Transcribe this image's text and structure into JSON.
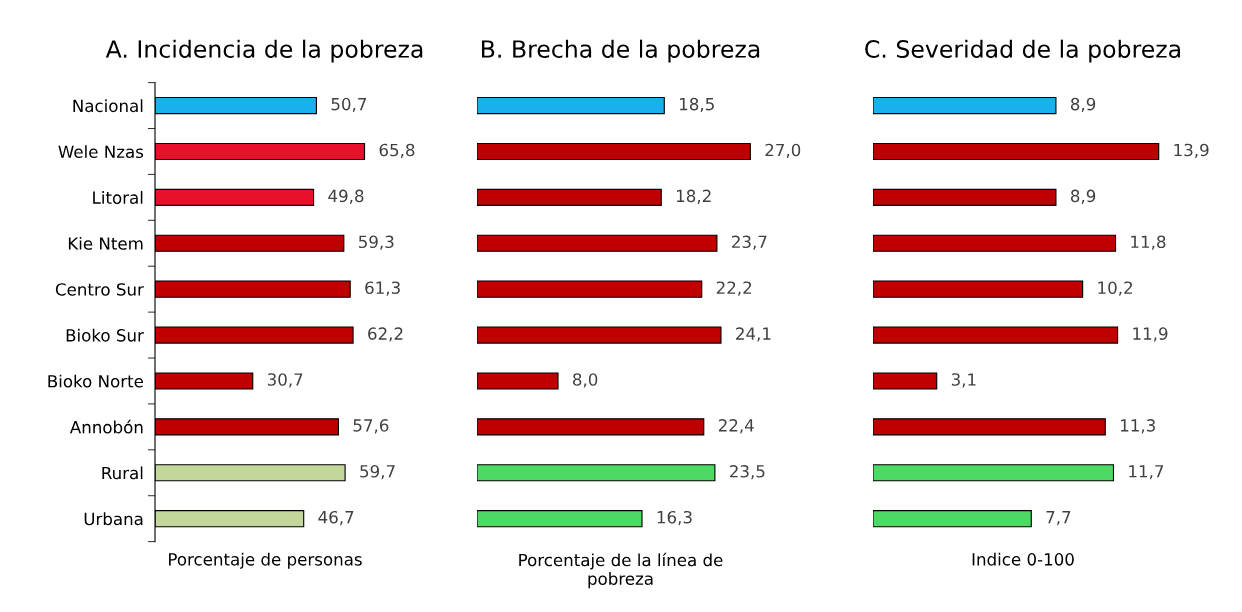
{
  "chart_data": [
    {
      "type": "bar",
      "orientation": "horizontal",
      "title": "A. Incidencia de la pobreza",
      "xlabel": "Porcentaje de personas",
      "tick_labels": "y",
      "categories": [
        "Nacional",
        "Wele Nzas",
        "Litoral",
        "Kie Ntem",
        "Centro Sur",
        "Bioko Sur",
        "Bioko Norte",
        "Annobón",
        "Rural",
        "Urbana"
      ],
      "values": [
        50.7,
        65.8,
        49.8,
        59.3,
        61.3,
        62.2,
        30.7,
        57.6,
        59.7,
        46.7
      ],
      "value_labels": [
        "50,7",
        "65,8",
        "49,8",
        "59,3",
        "61,3",
        "62,2",
        "30,7",
        "57,6",
        "59,7",
        "46,7"
      ],
      "colors": [
        "#1ab0f0",
        "#e8102a",
        "#e8102a",
        "#c00000",
        "#c00000",
        "#c00000",
        "#c00000",
        "#c00000",
        "#c4d79b",
        "#c4d79b"
      ]
    },
    {
      "type": "bar",
      "orientation": "horizontal",
      "title": "B. Brecha de la pobreza",
      "xlabel": "Porcentaje de la línea de\npobreza",
      "tick_labels": false,
      "categories": [
        null,
        null,
        null,
        null,
        null,
        null,
        null,
        null,
        null,
        null
      ],
      "values": [
        18.5,
        27.0,
        18.2,
        23.7,
        22.2,
        24.1,
        8.0,
        22.4,
        23.5,
        16.3
      ],
      "value_labels": [
        "18,5",
        "27,0",
        "18,2",
        "23,7",
        "22,2",
        "24,1",
        "8,0",
        "22,4",
        "23,5",
        "16,3"
      ],
      "colors": [
        "#1ab0f0",
        "#c00000",
        "#c00000",
        "#c00000",
        "#c00000",
        "#c00000",
        "#c00000",
        "#c00000",
        "#4cd964",
        "#4cd964"
      ]
    },
    {
      "type": "bar",
      "orientation": "horizontal",
      "title": "C. Severidad de la pobreza",
      "xlabel": "Indice 0-100",
      "tick_labels": false,
      "categories": [
        null,
        null,
        null,
        null,
        null,
        null,
        null,
        null,
        null,
        null
      ],
      "values": [
        8.9,
        13.9,
        8.9,
        11.8,
        10.2,
        11.9,
        3.1,
        11.3,
        11.7,
        7.7
      ],
      "value_labels": [
        "8,9",
        "13,9",
        "8,9",
        "11,8",
        "10,2",
        "11,9",
        "3,1",
        "11,3",
        "11,7",
        "7,7"
      ],
      "colors": [
        "#1ab0f0",
        "#c00000",
        "#c00000",
        "#c00000",
        "#c00000",
        "#c00000",
        "#c00000",
        "#c00000",
        "#4cd964",
        "#4cd964"
      ]
    }
  ]
}
